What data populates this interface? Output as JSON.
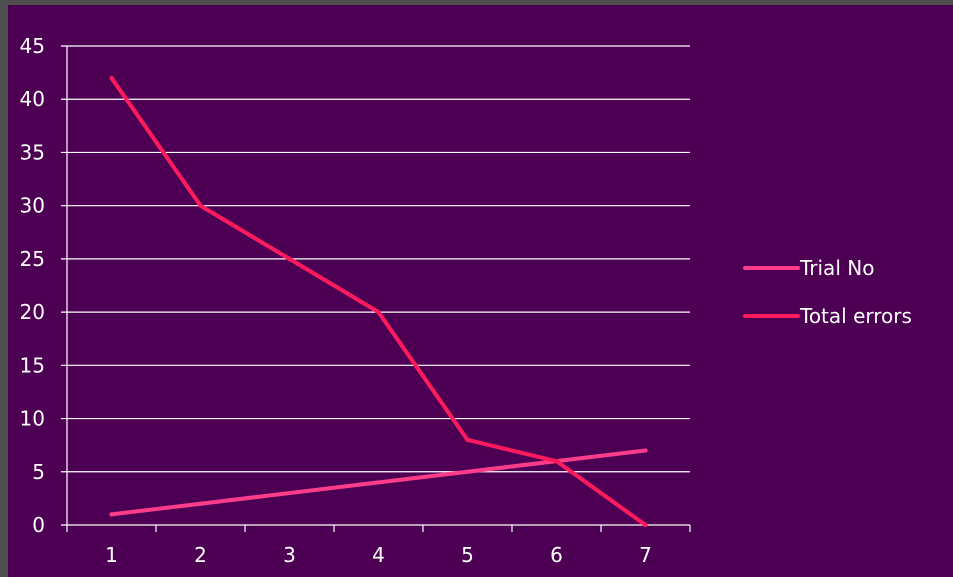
{
  "chart_data": {
    "type": "line",
    "title": "",
    "xlabel": "",
    "ylabel": "",
    "categories": [
      "1",
      "2",
      "3",
      "4",
      "5",
      "6",
      "7"
    ],
    "ylim": [
      0,
      45
    ],
    "yticks": [
      0,
      5,
      10,
      15,
      20,
      25,
      30,
      35,
      40,
      45
    ],
    "grid": true,
    "legend_position": "right",
    "series": [
      {
        "name": "Trial No",
        "color": "#ff3d8b",
        "values": [
          1,
          2,
          3,
          4,
          5,
          6,
          7
        ]
      },
      {
        "name": "Total errors",
        "color": "#ff1a5e",
        "values": [
          42,
          30,
          25,
          20,
          8,
          6,
          0
        ]
      }
    ]
  },
  "colors": {
    "plot_background": "#4d0053",
    "frame_background": "#4f4f4f",
    "text": "#ffffff"
  }
}
